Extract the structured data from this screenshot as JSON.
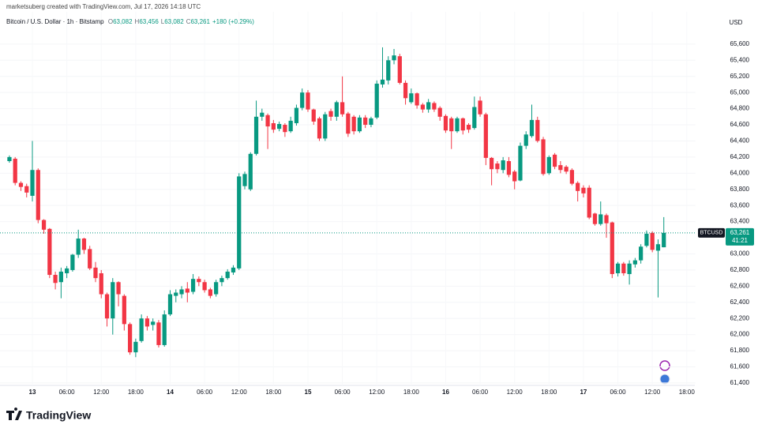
{
  "page": {
    "attribution": "marketsuberg created with TradingView.com, Jul 17, 2026 14:18 UTC",
    "brand": "TradingView"
  },
  "chart_data": {
    "type": "candlestick",
    "title": "Bitcoin / U.S. Dollar · 1h · Bitstamp",
    "ohlc_header": [
      {
        "key": "O",
        "value": "63,082"
      },
      {
        "key": "H",
        "value": "63,456"
      },
      {
        "key": "L",
        "value": "63,082"
      },
      {
        "key": "C",
        "value": "63,261"
      }
    ],
    "change": "+180 (+0.29%)",
    "currency": "USD",
    "last_price": {
      "symbol": "BTCUSD",
      "label": "63,261",
      "countdown": "41:21"
    },
    "up_color": "#089981",
    "down_color": "#f23645",
    "categories": [
      null,
      null,
      null,
      null,
      "13",
      null,
      null,
      null,
      null,
      null,
      "06:00",
      null,
      null,
      null,
      null,
      null,
      "12:00",
      null,
      null,
      null,
      null,
      null,
      "18:00",
      null,
      null,
      null,
      null,
      null,
      "14",
      null,
      null,
      null,
      null,
      null,
      "06:00",
      null,
      null,
      null,
      null,
      null,
      "12:00",
      null,
      null,
      null,
      null,
      null,
      "18:00",
      null,
      null,
      null,
      null,
      null,
      "15",
      null,
      null,
      null,
      null,
      null,
      "06:00",
      null,
      null,
      null,
      null,
      null,
      "12:00",
      null,
      null,
      null,
      null,
      null,
      "18:00",
      null,
      null,
      null,
      null,
      null,
      "16",
      null,
      null,
      null,
      null,
      null,
      "06:00",
      null,
      null,
      null,
      null,
      null,
      "12:00",
      null,
      null,
      null,
      null,
      null,
      "18:00",
      null,
      null,
      null,
      null,
      null,
      "17",
      null,
      null,
      null,
      null,
      null,
      "06:00",
      null,
      null,
      null,
      null,
      null,
      "12:00",
      null,
      null,
      null,
      null,
      null,
      "18:00",
      null
    ],
    "open": [
      64150,
      64180,
      63880,
      63840,
      63720,
      64040,
      63420,
      63310,
      62740,
      62650,
      62760,
      62800,
      62990,
      63190,
      63060,
      62830,
      62760,
      62500,
      62200,
      62650,
      62480,
      62130,
      61780,
      61920,
      62200,
      62120,
      62150,
      61870,
      62250,
      62480,
      62500,
      62570,
      62530,
      62690,
      62650,
      62560,
      62500,
      62650,
      62700,
      62770,
      62820,
      63840,
      63800,
      64240,
      64700,
      64720,
      64620,
      64550,
      64600,
      64520,
      64620,
      64810,
      65000,
      64790,
      64680,
      64430,
      64770,
      64700,
      64880,
      64740,
      64700,
      64520,
      64690,
      64600,
      64690,
      65100,
      65150,
      65400,
      65450,
      65120,
      64880,
      64990,
      64850,
      64790,
      64870,
      64810,
      64710,
      64680,
      64520,
      64680,
      64600,
      64560,
      64900,
      64730,
      64190,
      64120,
      64040,
      64150,
      64020,
      63910,
      64340,
      64460,
      64660,
      64420,
      64000,
      64230,
      64100,
      64080,
      64040,
      63880,
      63820,
      63820,
      63500,
      63370,
      63480,
      63390,
      62760,
      62880,
      62750,
      62870,
      62920,
      63100,
      63260,
      63040,
      63082,
      null,
      null,
      null,
      null,
      null
    ],
    "high": [
      64220,
      64200,
      63900,
      63870,
      64400,
      64060,
      63430,
      63320,
      62780,
      62830,
      62850,
      63000,
      63300,
      63200,
      63100,
      62900,
      62800,
      62520,
      62700,
      62660,
      62500,
      62150,
      61950,
      62250,
      62230,
      62200,
      62180,
      62300,
      62550,
      62560,
      62600,
      62650,
      62750,
      62720,
      62680,
      62580,
      62680,
      62730,
      62810,
      62860,
      64000,
      64020,
      64260,
      64900,
      64800,
      64740,
      64660,
      64640,
      64620,
      64700,
      64850,
      65050,
      65030,
      64800,
      64700,
      64760,
      64800,
      64900,
      65200,
      64760,
      64720,
      64720,
      64720,
      64700,
      65150,
      65560,
      65450,
      65540,
      65480,
      65150,
      65050,
      65000,
      64870,
      64920,
      64890,
      64830,
      64730,
      64700,
      64700,
      64690,
      64620,
      64950,
      64950,
      64750,
      64200,
      64150,
      64200,
      64200,
      64040,
      64380,
      64520,
      64850,
      64700,
      64450,
      64220,
      64250,
      64150,
      64100,
      64060,
      63900,
      63850,
      63850,
      63510,
      63650,
      63500,
      63400,
      62900,
      62900,
      62920,
      62950,
      63120,
      63290,
      63280,
      63180,
      63456,
      null,
      null,
      null,
      null,
      null
    ],
    "low": [
      64130,
      63850,
      63780,
      63700,
      63650,
      63380,
      63250,
      62700,
      62560,
      62450,
      62700,
      62780,
      62950,
      63000,
      62800,
      62650,
      62450,
      62100,
      62000,
      62350,
      62050,
      61750,
      61720,
      61900,
      62050,
      62050,
      61840,
      61850,
      62230,
      62400,
      62450,
      62400,
      62500,
      62600,
      62520,
      62450,
      62470,
      62600,
      62680,
      62740,
      62800,
      63800,
      63780,
      64220,
      64650,
      64300,
      64500,
      64520,
      64450,
      64500,
      64590,
      64780,
      64760,
      64600,
      64400,
      64400,
      64650,
      64650,
      64700,
      64450,
      64480,
      64500,
      64560,
      64570,
      64670,
      65060,
      65100,
      65350,
      65100,
      64850,
      64860,
      64800,
      64750,
      64750,
      64760,
      64650,
      64500,
      64300,
      64500,
      64480,
      64500,
      64540,
      64700,
      64100,
      63850,
      64000,
      64000,
      63950,
      63800,
      63900,
      64300,
      64440,
      64380,
      63970,
      63980,
      64050,
      64000,
      63990,
      63850,
      63650,
      63700,
      63430,
      63350,
      63350,
      63200,
      62700,
      62720,
      62730,
      62620,
      62830,
      62880,
      63080,
      63020,
      62460,
      63082,
      null,
      null,
      null,
      null,
      null
    ],
    "close": [
      64200,
      63880,
      63830,
      63760,
      64040,
      63420,
      63300,
      62740,
      62640,
      62780,
      62820,
      62990,
      63190,
      63050,
      62820,
      62700,
      62500,
      62200,
      62650,
      62500,
      62130,
      61780,
      61910,
      62200,
      62100,
      62160,
      61870,
      62250,
      62500,
      62520,
      62560,
      62520,
      62690,
      62650,
      62550,
      62480,
      62650,
      62700,
      62780,
      62830,
      63960,
      63990,
      64240,
      64700,
      64750,
      64580,
      64540,
      64610,
      64510,
      64650,
      64810,
      65000,
      64790,
      64640,
      64430,
      64730,
      64700,
      64880,
      64730,
      64490,
      64520,
      64690,
      64600,
      64680,
      65110,
      65160,
      65400,
      65460,
      65120,
      64930,
      64990,
      64840,
      64790,
      64880,
      64790,
      64700,
      64530,
      64520,
      64680,
      64530,
      64540,
      64820,
      64730,
      64190,
      64050,
      64050,
      64160,
      63980,
      63900,
      64340,
      64480,
      64660,
      64400,
      63990,
      64200,
      64080,
      64040,
      64020,
      63870,
      63780,
      63750,
      63450,
      63370,
      63490,
      63380,
      62750,
      62880,
      62760,
      62880,
      62920,
      63090,
      63250,
      63050,
      63120,
      63261,
      null,
      null,
      null,
      null,
      null
    ],
    "ylim": [
      61370,
      66000
    ],
    "yticks": [
      {
        "value": 61400,
        "label": "61,400"
      },
      {
        "value": 61600,
        "label": "61,600"
      },
      {
        "value": 61800,
        "label": "61,800"
      },
      {
        "value": 62000,
        "label": "62,000"
      },
      {
        "value": 62200,
        "label": "62,200"
      },
      {
        "value": 62400,
        "label": "62,400"
      },
      {
        "value": 62600,
        "label": "62,600"
      },
      {
        "value": 62800,
        "label": "62,800"
      },
      {
        "value": 63000,
        "label": "63,000"
      },
      {
        "value": 63400,
        "label": "63,400"
      },
      {
        "value": 63600,
        "label": "63,600"
      },
      {
        "value": 63800,
        "label": "63,800"
      },
      {
        "value": 64000,
        "label": "64,000"
      },
      {
        "value": 64200,
        "label": "64,200"
      },
      {
        "value": 64400,
        "label": "64,400"
      },
      {
        "value": 64600,
        "label": "64,600"
      },
      {
        "value": 64800,
        "label": "64,800"
      },
      {
        "value": 65000,
        "label": "65,000"
      },
      {
        "value": 65200,
        "label": "65,200"
      },
      {
        "value": 65400,
        "label": "65,400"
      },
      {
        "value": 65600,
        "label": "65,600"
      }
    ],
    "grid": true
  }
}
